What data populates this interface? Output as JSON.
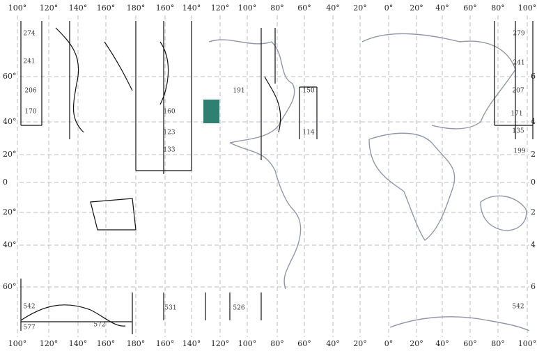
{
  "top_labels": [
    "100°",
    "120°",
    "140°",
    "160°",
    "180°",
    "160°",
    "140°",
    "120°",
    "100°",
    "80°",
    "60°",
    "40°",
    "20°",
    "0°",
    "20°",
    "40°",
    "60°",
    "80°",
    "100°"
  ],
  "bottom_labels": [
    "100°",
    "120°",
    "140°",
    "160°",
    "180°",
    "160°",
    "140°",
    "120°",
    "100°",
    "80°",
    "60°",
    "40°",
    "20°",
    "0°",
    "20°",
    "40°",
    "60°",
    "80°",
    "100°"
  ],
  "left_labels": [
    "60°",
    "40°",
    "20°",
    "0",
    "20°",
    "40°",
    "60°"
  ],
  "right_labels": [
    "6",
    "4",
    "2",
    "0",
    "2",
    "4",
    "6"
  ],
  "box_labels": [
    "274",
    "241",
    "206",
    "170",
    "279",
    "241",
    "207",
    "171",
    "135",
    "199",
    "191",
    "150",
    "160",
    "123",
    "133",
    "114",
    "531",
    "526",
    "572",
    "577",
    "542",
    "542"
  ]
}
